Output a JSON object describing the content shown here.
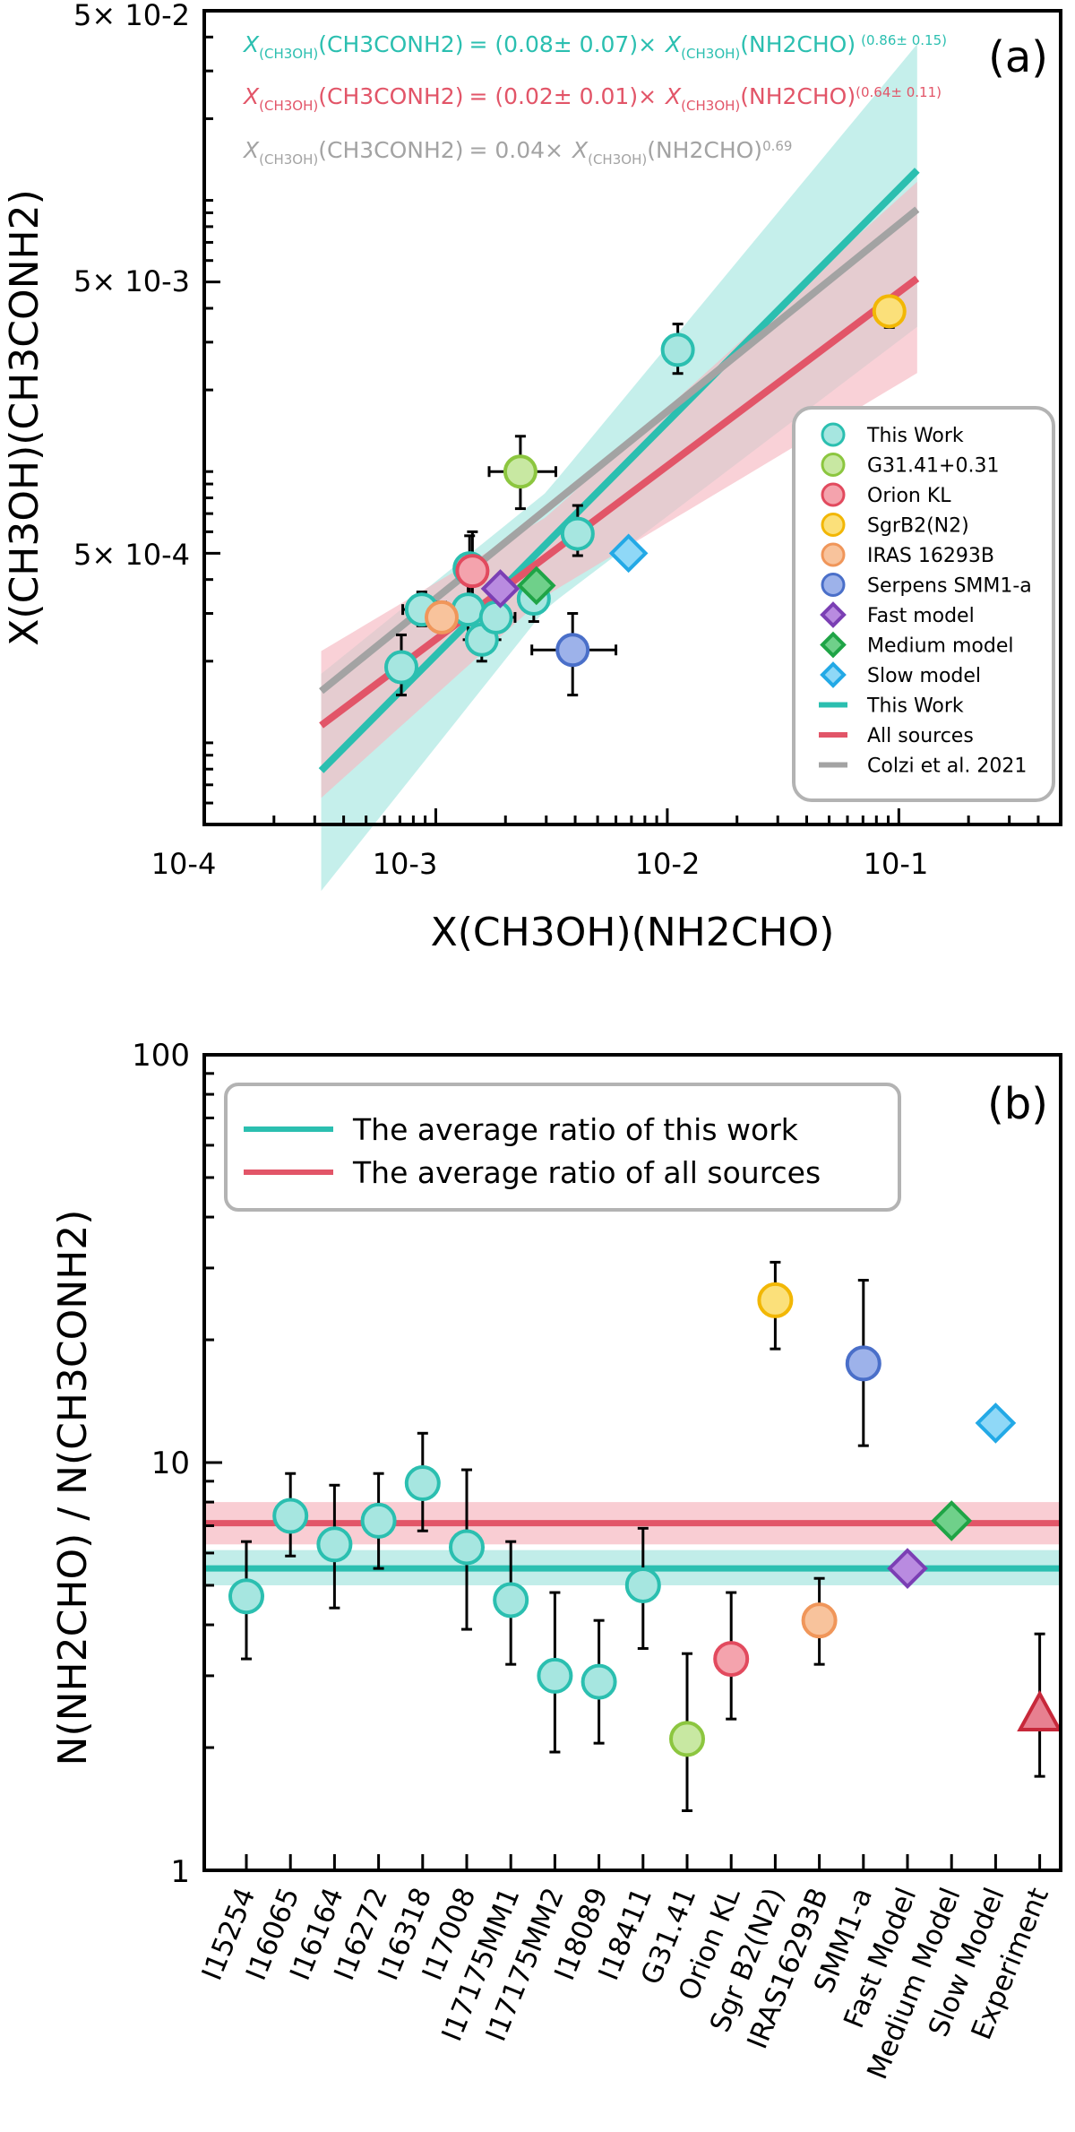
{
  "colors": {
    "this_work": "#2bbfb0",
    "this_work_fill": "#a6e6e0",
    "all_sources": "#e25568",
    "all_sources_fill": "#f6b8c1",
    "colzi": "#a3a3a3",
    "g31": "#8cc63f",
    "g31_fill": "#c8e8a2",
    "orion": "#e24a5e",
    "orion_fill": "#f4a3ad",
    "sgrb2": "#f2b705",
    "sgrb2_fill": "#fbe07a",
    "iras": "#f0965a",
    "iras_fill": "#f8c39c",
    "serpens": "#4a6fc9",
    "serpens_fill": "#9db2ea",
    "fast": "#7b3fb4",
    "fast_fill": "#b98be0",
    "medium": "#1fa446",
    "medium_fill": "#6fd08a",
    "slow": "#23a9e6",
    "slow_fill": "#8fd8f7",
    "experiment": "#c7283a",
    "experiment_fill": "#e78090"
  },
  "chart_data": [
    {
      "type": "scatter",
      "panel_label": "(a)",
      "xlabel": "X(CH3OH)(NH2CHO)",
      "ylabel": "X(CH3OH)(CH3CONH2)",
      "xscale": "log",
      "yscale": "log",
      "xlim": [
        0.0001,
        0.5
      ],
      "ylim": [
        5e-05,
        0.05
      ],
      "x_ticks": [
        "10-4",
        "10-3",
        "10-2",
        "10-1"
      ],
      "y_ticks": [
        "5× 10-4",
        "5× 10-3",
        "5× 10-2"
      ],
      "equations": [
        {
          "series": "This Work",
          "text": "= (0.08± 0.07)×",
          "exponent": "(0.86± 0.15)"
        },
        {
          "series": "All sources",
          "text": "= (0.02± 0.01)×",
          "exponent": "(0.64± 0.11)"
        },
        {
          "series": "Colzi et al. 2021",
          "text": "= 0.04×",
          "exponent": "0.69"
        }
      ],
      "equation_lhs": "(CH3CONH2)",
      "equation_rhs": "(NH2CHO)",
      "equation_sub": "(CH3OH)",
      "fits": [
        {
          "name": "This Work",
          "a": 0.08,
          "b": 0.86,
          "band_lo": 0.58,
          "band_hi": 1.55,
          "x_range": [
            0.00032,
            0.12
          ]
        },
        {
          "name": "All sources",
          "a": 0.02,
          "b": 0.64,
          "band_lo": 0.72,
          "band_hi": 1.4,
          "x_range": [
            0.00032,
            0.12
          ]
        },
        {
          "name": "Colzi et al. 2021",
          "a": 0.04,
          "b": 0.69,
          "x_range": [
            0.00032,
            0.12
          ]
        }
      ],
      "points": [
        {
          "series": "This Work",
          "x": 0.00071,
          "y": 0.00019,
          "yerr": [
            0.00015,
            0.00025
          ]
        },
        {
          "series": "This Work",
          "x": 0.00087,
          "y": 0.00031,
          "yerr": [
            0.00027,
            0.00036
          ],
          "xerr": [
            0.00072,
            0.00102
          ]
        },
        {
          "series": "This Work",
          "x": 0.00138,
          "y": 0.00031,
          "yerr": [
            0.00024,
            0.00048
          ]
        },
        {
          "series": "This Work",
          "x": 0.0014,
          "y": 0.00044,
          "yerr": [
            0.00035,
            0.00058
          ]
        },
        {
          "series": "This Work",
          "x": 0.00158,
          "y": 0.00024,
          "yerr": [
            0.0002,
            0.00031
          ]
        },
        {
          "series": "This Work",
          "x": 0.00182,
          "y": 0.00029,
          "yerr": [
            0.00024,
            0.00035
          ],
          "xerr": [
            0.0015,
            0.0022
          ]
        },
        {
          "series": "This Work",
          "x": 0.00265,
          "y": 0.00034,
          "yerr": [
            0.00028,
            0.0004
          ]
        },
        {
          "series": "This Work",
          "x": 0.0041,
          "y": 0.00059,
          "yerr": [
            0.00049,
            0.00075
          ]
        },
        {
          "series": "This Work",
          "x": 0.0111,
          "y": 0.00281,
          "yerr": [
            0.0023,
            0.0035
          ]
        },
        {
          "series": "G31.41+0.31",
          "x": 0.00232,
          "y": 0.001,
          "yerr": [
            0.00073,
            0.00135
          ],
          "xerr": [
            0.0017,
            0.0033
          ]
        },
        {
          "series": "Orion KL",
          "x": 0.00144,
          "y": 0.00043,
          "yerr": [
            0.00031,
            0.0006
          ]
        },
        {
          "series": "SgrB2(N2)",
          "x": 0.091,
          "y": 0.0039,
          "yerr": [
            0.0034,
            0.0044
          ]
        },
        {
          "series": "IRAS 16293B",
          "x": 0.00106,
          "y": 0.00029,
          "yerr": [
            0.00026,
            0.00033
          ]
        },
        {
          "series": "Serpens SMM1-a",
          "x": 0.0039,
          "y": 0.00022,
          "yerr": [
            0.00015,
            0.0003
          ],
          "xerr": [
            0.0026,
            0.006
          ]
        },
        {
          "series": "Fast model",
          "x": 0.0019,
          "y": 0.00037
        },
        {
          "series": "Medium model",
          "x": 0.00272,
          "y": 0.00038
        },
        {
          "series": "Slow model",
          "x": 0.0068,
          "y": 0.0005
        }
      ],
      "legend": {
        "placement": "bottom-right",
        "entries": [
          {
            "label": "This Work",
            "kind": "circle",
            "color": "this_work"
          },
          {
            "label": "G31.41+0.31",
            "kind": "circle",
            "color": "g31"
          },
          {
            "label": "Orion KL",
            "kind": "circle",
            "color": "orion"
          },
          {
            "label": "SgrB2(N2)",
            "kind": "circle",
            "color": "sgrb2"
          },
          {
            "label": "IRAS 16293B",
            "kind": "circle",
            "color": "iras"
          },
          {
            "label": "Serpens SMM1-a",
            "kind": "circle",
            "color": "serpens"
          },
          {
            "label": "Fast model",
            "kind": "diamond",
            "color": "fast"
          },
          {
            "label": "Medium model",
            "kind": "diamond",
            "color": "medium"
          },
          {
            "label": "Slow model",
            "kind": "diamond",
            "color": "slow"
          },
          {
            "label": "This Work",
            "kind": "line",
            "color": "this_work"
          },
          {
            "label": "All sources",
            "kind": "line",
            "color": "all_sources"
          },
          {
            "label": "Colzi et al. 2021",
            "kind": "line",
            "color": "colzi"
          }
        ]
      }
    },
    {
      "type": "scatter",
      "panel_label": "(b)",
      "ylabel": "N(NH2CHO) / N(CH3CONH2)",
      "yscale": "log",
      "ylim": [
        1,
        100
      ],
      "y_ticks": [
        "1",
        "10",
        "100"
      ],
      "categories": [
        "I15254",
        "I16065",
        "I16164",
        "I16272",
        "I16318",
        "I17008",
        "I17175MM1",
        "I17175MM2",
        "I18089",
        "I18411",
        "G31.41",
        "Orion KL",
        "Sgr B2(N2)",
        "IRAS16293B",
        "SMM1-a",
        "Fast Model",
        "Medium Model",
        "Slow Model",
        "Experiment"
      ],
      "values": [
        4.7,
        7.4,
        6.3,
        7.2,
        8.9,
        6.2,
        4.6,
        3.0,
        2.9,
        5.0,
        2.1,
        3.3,
        25.0,
        4.1,
        17.5,
        5.5,
        7.2,
        12.5,
        2.4
      ],
      "errors": [
        [
          3.3,
          6.4
        ],
        [
          5.9,
          9.4
        ],
        [
          4.4,
          8.8
        ],
        [
          5.5,
          9.4
        ],
        [
          6.8,
          11.8
        ],
        [
          3.9,
          9.6
        ],
        [
          3.2,
          6.4
        ],
        [
          1.95,
          4.8
        ],
        [
          2.05,
          4.1
        ],
        [
          3.5,
          6.9
        ],
        [
          1.4,
          3.4
        ],
        [
          2.35,
          4.8
        ],
        [
          19.0,
          31.0
        ],
        [
          3.2,
          5.2
        ],
        [
          11.0,
          28.0
        ],
        null,
        null,
        null,
        [
          1.7,
          3.8
        ]
      ],
      "marker_series": [
        "This Work",
        "This Work",
        "This Work",
        "This Work",
        "This Work",
        "This Work",
        "This Work",
        "This Work",
        "This Work",
        "This Work",
        "g31",
        "orion",
        "sgrb2",
        "iras",
        "serpens",
        "fast",
        "medium",
        "slow",
        "experiment"
      ],
      "averages": [
        {
          "label": "The average ratio of this work",
          "color": "this_work",
          "value": 5.5,
          "band": [
            5.0,
            6.1
          ]
        },
        {
          "label": "The average ratio of all sources",
          "color": "all_sources",
          "value": 7.1,
          "band": [
            6.3,
            8.0
          ]
        }
      ],
      "legend": {
        "placement": "top"
      }
    }
  ]
}
